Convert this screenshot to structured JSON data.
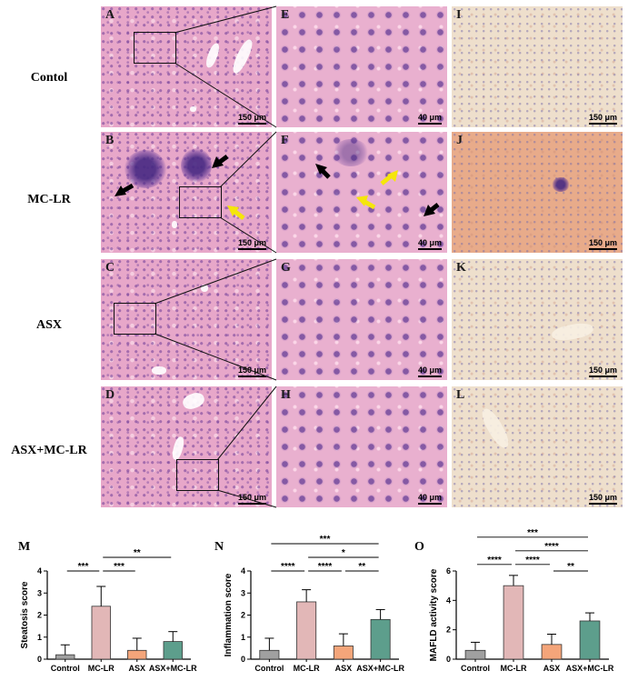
{
  "rows": [
    {
      "group": "Contol",
      "panels": [
        "A",
        "E",
        "I"
      ],
      "scale": [
        "150 μm",
        "40 μm",
        "150 μm"
      ]
    },
    {
      "group": "MC-LR",
      "panels": [
        "B",
        "F",
        "J"
      ],
      "scale": [
        "150 μm",
        "40 μm",
        "150 μm"
      ]
    },
    {
      "group": "ASX",
      "panels": [
        "C",
        "G",
        "K"
      ],
      "scale": [
        "150 μm",
        "40 μm",
        "150 μm"
      ]
    },
    {
      "group": "ASX+MC-LR",
      "panels": [
        "D",
        "H",
        "L"
      ],
      "scale": [
        "150 μm",
        "40 μm",
        "150 μm"
      ]
    }
  ],
  "colors": {
    "Control": "#a0a0a0",
    "MC-LR": "#e2b7b7",
    "ASX": "#f4a57a",
    "ASX+MC-LR": "#5d9e8c",
    "arrow_black": "#000000",
    "arrow_yellow": "#f5e60a"
  },
  "chart_data": [
    {
      "type": "bar",
      "letter": "M",
      "ylabel": "Steatosis score",
      "categories": [
        "Control",
        "MC-LR",
        "ASX",
        "ASX+MC-LR"
      ],
      "values": [
        0.2,
        2.4,
        0.4,
        0.8
      ],
      "errors": [
        0.45,
        0.9,
        0.55,
        0.45
      ],
      "ylim": [
        0,
        4
      ],
      "yticks": [
        "0",
        "1",
        "2",
        "3",
        "4"
      ],
      "significance": [
        {
          "from": 0,
          "to": 1,
          "label": "***",
          "level": 0
        },
        {
          "from": 1,
          "to": 2,
          "label": "***",
          "level": 0
        },
        {
          "from": 1,
          "to": 3,
          "label": "**",
          "level": 1
        }
      ]
    },
    {
      "type": "bar",
      "letter": "N",
      "ylabel": "Inflammation score",
      "categories": [
        "Control",
        "MC-LR",
        "ASX",
        "ASX+MC-LR"
      ],
      "values": [
        0.4,
        2.6,
        0.6,
        1.8
      ],
      "errors": [
        0.55,
        0.55,
        0.55,
        0.45
      ],
      "ylim": [
        0,
        4
      ],
      "yticks": [
        "0",
        "1",
        "2",
        "3",
        "4"
      ],
      "significance": [
        {
          "from": 0,
          "to": 1,
          "label": "****",
          "level": 0
        },
        {
          "from": 1,
          "to": 2,
          "label": "****",
          "level": 0
        },
        {
          "from": 2,
          "to": 3,
          "label": "**",
          "level": 0
        },
        {
          "from": 1,
          "to": 3,
          "label": "*",
          "level": 1
        },
        {
          "from": 0,
          "to": 3,
          "label": "***",
          "level": 2
        }
      ]
    },
    {
      "type": "bar",
      "letter": "O",
      "ylabel": "MAFLD activity score",
      "categories": [
        "Control",
        "MC-LR",
        "ASX",
        "ASX+MC-LR"
      ],
      "values": [
        0.6,
        5.0,
        1.0,
        2.6
      ],
      "errors": [
        0.55,
        0.7,
        0.7,
        0.55
      ],
      "ylim": [
        0,
        6
      ],
      "yticks": [
        "0",
        "2",
        "4",
        "6"
      ],
      "significance": [
        {
          "from": 0,
          "to": 1,
          "label": "****",
          "level": 0
        },
        {
          "from": 1,
          "to": 2,
          "label": "****",
          "level": 0
        },
        {
          "from": 2,
          "to": 3,
          "label": "**",
          "level": 0
        },
        {
          "from": 1,
          "to": 3,
          "label": "****",
          "level": 1
        },
        {
          "from": 0,
          "to": 3,
          "label": "***",
          "level": 2
        }
      ]
    }
  ]
}
